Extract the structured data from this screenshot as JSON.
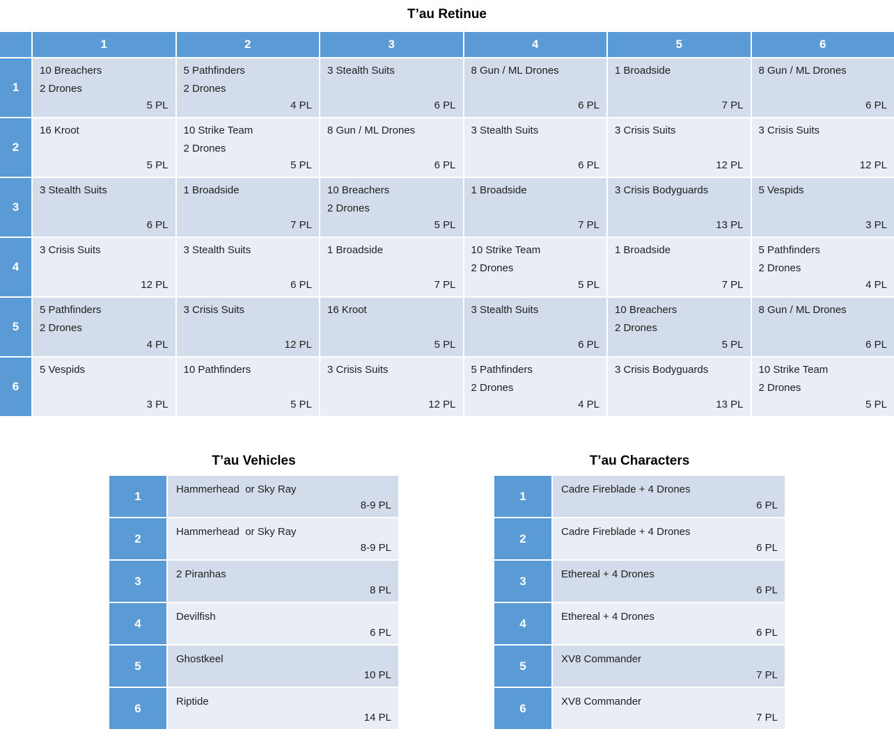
{
  "colors": {
    "header_blue": "#5B9BD5",
    "band_dark": "#D3DCEA",
    "band_light": "#E9EDF6",
    "header_text": "#FFFFFF",
    "body_text": "#202020"
  },
  "retinue": {
    "title": "T’au Retinue",
    "col_headers": [
      "1",
      "2",
      "3",
      "4",
      "5",
      "6"
    ],
    "rows": [
      {
        "header": "1",
        "cells": [
          {
            "unit": "10 Breachers\n2 Drones",
            "pl": "5 PL"
          },
          {
            "unit": "5 Pathfinders\n2 Drones",
            "pl": "4 PL"
          },
          {
            "unit": "3 Stealth Suits",
            "pl": "6 PL"
          },
          {
            "unit": "8 Gun / ML Drones",
            "pl": "6 PL"
          },
          {
            "unit": "1 Broadside",
            "pl": "7 PL"
          },
          {
            "unit": "8 Gun / ML Drones",
            "pl": "6 PL"
          }
        ]
      },
      {
        "header": "2",
        "cells": [
          {
            "unit": "16 Kroot",
            "pl": "5 PL"
          },
          {
            "unit": "10 Strike Team\n2 Drones",
            "pl": "5 PL"
          },
          {
            "unit": "8 Gun / ML Drones",
            "pl": "6 PL"
          },
          {
            "unit": "3 Stealth Suits",
            "pl": "6 PL"
          },
          {
            "unit": "3 Crisis Suits",
            "pl": "12 PL"
          },
          {
            "unit": "3 Crisis Suits",
            "pl": "12 PL"
          }
        ]
      },
      {
        "header": "3",
        "cells": [
          {
            "unit": "3 Stealth Suits",
            "pl": "6 PL"
          },
          {
            "unit": "1 Broadside",
            "pl": "7 PL"
          },
          {
            "unit": "10 Breachers\n2 Drones",
            "pl": "5 PL"
          },
          {
            "unit": "1 Broadside",
            "pl": "7 PL"
          },
          {
            "unit": "3 Crisis Bodyguards",
            "pl": "13 PL"
          },
          {
            "unit": "5 Vespids",
            "pl": "3 PL"
          }
        ]
      },
      {
        "header": "4",
        "cells": [
          {
            "unit": "3 Crisis Suits",
            "pl": "12 PL"
          },
          {
            "unit": "3 Stealth Suits",
            "pl": "6 PL"
          },
          {
            "unit": "1 Broadside",
            "pl": "7 PL"
          },
          {
            "unit": "10 Strike Team\n2 Drones",
            "pl": "5 PL"
          },
          {
            "unit": "1 Broadside",
            "pl": "7 PL"
          },
          {
            "unit": "5 Pathfinders\n2 Drones",
            "pl": "4 PL"
          }
        ]
      },
      {
        "header": "5",
        "cells": [
          {
            "unit": "5 Pathfinders\n2 Drones",
            "pl": "4 PL"
          },
          {
            "unit": "3 Crisis Suits",
            "pl": "12 PL"
          },
          {
            "unit": "16 Kroot",
            "pl": "5 PL"
          },
          {
            "unit": "3 Stealth Suits",
            "pl": "6 PL"
          },
          {
            "unit": "10 Breachers\n2 Drones",
            "pl": "5 PL"
          },
          {
            "unit": "8 Gun / ML Drones",
            "pl": "6 PL"
          }
        ]
      },
      {
        "header": "6",
        "cells": [
          {
            "unit": "5 Vespids",
            "pl": "3 PL"
          },
          {
            "unit": "10 Pathfinders",
            "pl": "5 PL"
          },
          {
            "unit": "3 Crisis Suits",
            "pl": "12 PL"
          },
          {
            "unit": "5 Pathfinders\n2 Drones",
            "pl": "4 PL"
          },
          {
            "unit": "3 Crisis Bodyguards",
            "pl": "13 PL"
          },
          {
            "unit": "10 Strike Team\n2 Drones",
            "pl": "5 PL"
          }
        ]
      }
    ]
  },
  "vehicles": {
    "title": "T’au Vehicles",
    "rows": [
      {
        "num": "1",
        "unit": "Hammerhead  or Sky Ray",
        "pl": "8-9 PL"
      },
      {
        "num": "2",
        "unit": "Hammerhead  or Sky Ray",
        "pl": "8-9 PL"
      },
      {
        "num": "3",
        "unit": "2 Piranhas",
        "pl": "8 PL"
      },
      {
        "num": "4",
        "unit": "Devilfish",
        "pl": "6 PL"
      },
      {
        "num": "5",
        "unit": "Ghostkeel",
        "pl": "10 PL"
      },
      {
        "num": "6",
        "unit": "Riptide",
        "pl": "14 PL"
      }
    ]
  },
  "characters": {
    "title": "T’au Characters",
    "rows": [
      {
        "num": "1",
        "unit": "Cadre Fireblade + 4 Drones",
        "pl": "6 PL"
      },
      {
        "num": "2",
        "unit": "Cadre Fireblade + 4 Drones",
        "pl": "6 PL"
      },
      {
        "num": "3",
        "unit": "Ethereal + 4 Drones",
        "pl": "6 PL"
      },
      {
        "num": "4",
        "unit": "Ethereal + 4 Drones",
        "pl": "6 PL"
      },
      {
        "num": "5",
        "unit": "XV8 Commander",
        "pl": "7 PL"
      },
      {
        "num": "6",
        "unit": "XV8 Commander",
        "pl": "7 PL"
      }
    ]
  }
}
